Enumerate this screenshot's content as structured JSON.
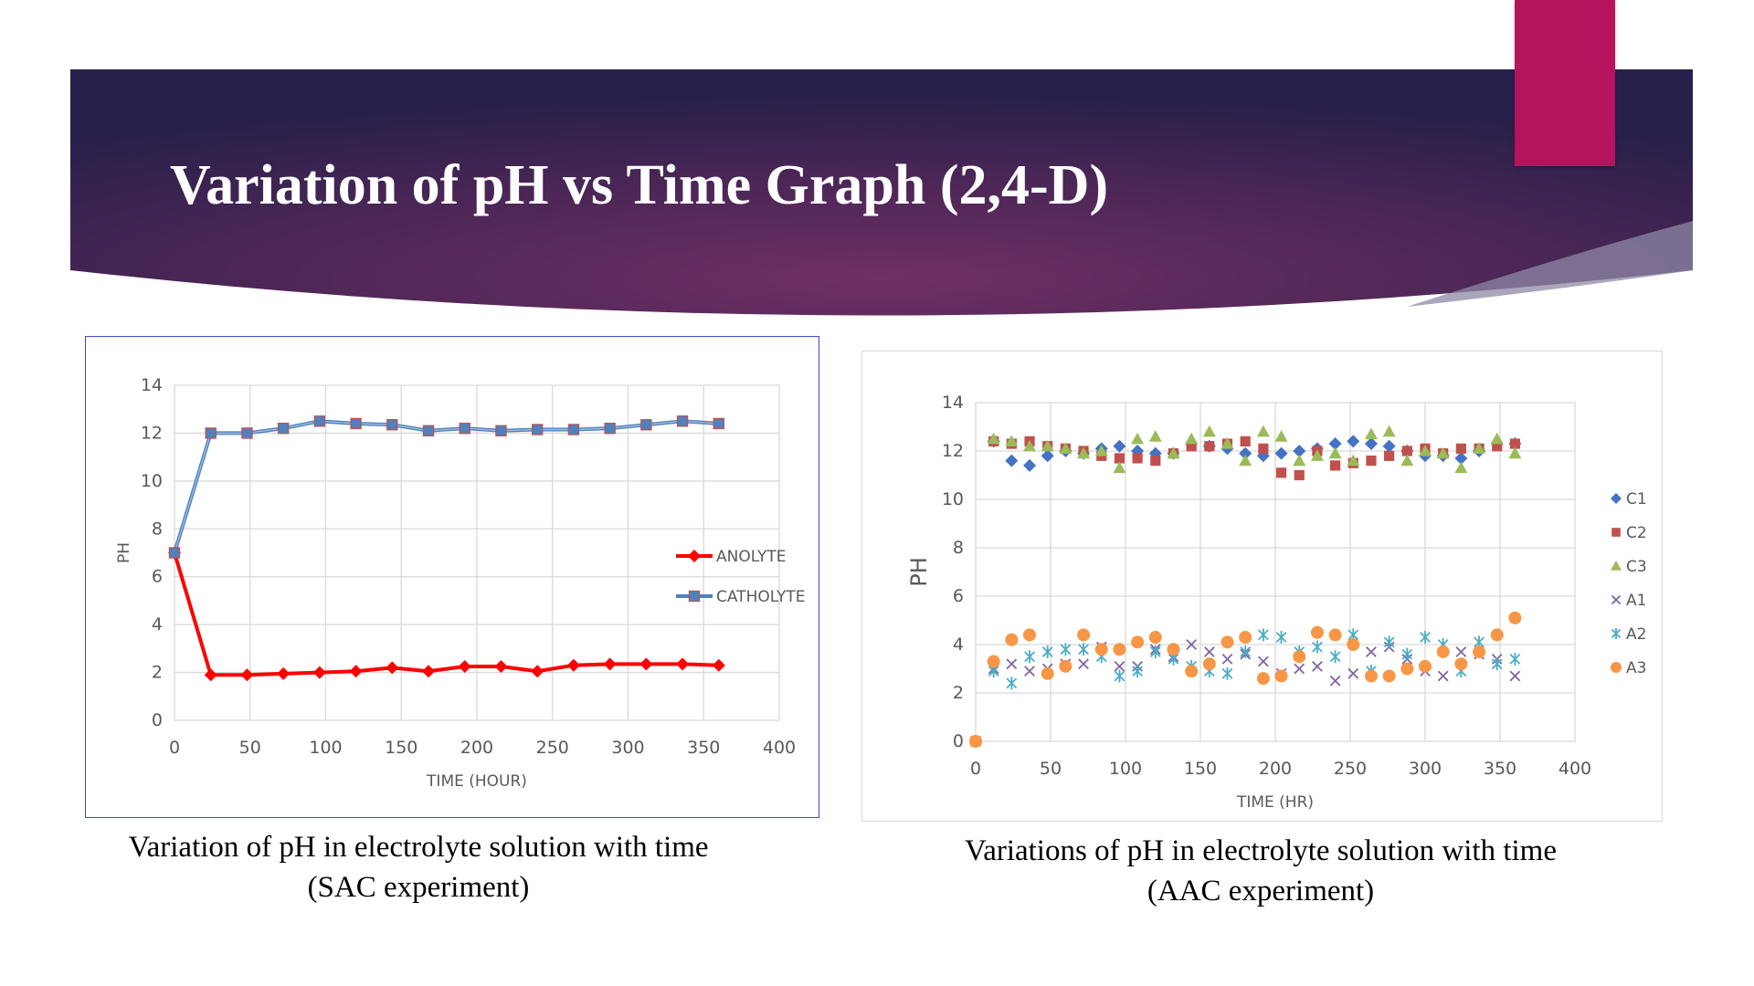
{
  "slide": {
    "title": "Variation of pH vs Time Graph (2,4-D)"
  },
  "colors": {
    "banner_dark": "#2a2147",
    "banner_mid": "#6b2e62",
    "accent": "#b5135e"
  },
  "captions": {
    "left": [
      "Variation of pH in electrolyte solution with time",
      "(SAC experiment)"
    ],
    "right": [
      "Variations of pH in electrolyte solution with time",
      "(AAC experiment)"
    ]
  },
  "chart_data": [
    {
      "type": "line",
      "xlabel": "TIME (HOUR)",
      "ylabel": "PH",
      "xlim": [
        0,
        400
      ],
      "ylim": [
        0,
        14
      ],
      "xticks": [
        "0",
        "50",
        "100",
        "150",
        "200",
        "250",
        "300",
        "350",
        "400"
      ],
      "yticks": [
        "0",
        "2",
        "4",
        "6",
        "8",
        "10",
        "12",
        "14"
      ],
      "grid": true,
      "legend": "right",
      "series": [
        {
          "name": "ANOLYTE",
          "color": "#ff0000",
          "marker": "diamond",
          "x": [
            0,
            24,
            48,
            72,
            96,
            120,
            144,
            168,
            192,
            216,
            240,
            264,
            288,
            312,
            336,
            360
          ],
          "values": [
            7.0,
            1.9,
            1.9,
            1.95,
            2.0,
            2.05,
            2.2,
            2.05,
            2.25,
            2.25,
            2.05,
            2.3,
            2.35,
            2.35,
            2.35,
            2.3
          ]
        },
        {
          "name": "CATHOLYTE",
          "color": "#4f81bd",
          "marker": "square",
          "x": [
            0,
            24,
            48,
            72,
            96,
            120,
            144,
            168,
            192,
            216,
            240,
            264,
            288,
            312,
            336,
            360
          ],
          "values": [
            7.0,
            12.0,
            12.0,
            12.2,
            12.5,
            12.4,
            12.35,
            12.1,
            12.2,
            12.1,
            12.15,
            12.15,
            12.2,
            12.35,
            12.5,
            12.4
          ]
        }
      ]
    },
    {
      "type": "scatter",
      "xlabel": "TIME (HR)",
      "ylabel": "PH",
      "xlim": [
        0,
        400
      ],
      "ylim": [
        0,
        14
      ],
      "xticks": [
        "0",
        "50",
        "100",
        "150",
        "200",
        "250",
        "300",
        "350",
        "400"
      ],
      "yticks": [
        "0",
        "2",
        "4",
        "6",
        "8",
        "10",
        "12",
        "14"
      ],
      "grid": true,
      "legend": "right",
      "series": [
        {
          "name": "C1",
          "color": "#4472c4",
          "marker": "diamond",
          "x": [
            0,
            12,
            24,
            36,
            48,
            60,
            72,
            84,
            96,
            108,
            120,
            132,
            144,
            156,
            168,
            180,
            192,
            204,
            216,
            228,
            240,
            252,
            264,
            276,
            288,
            300,
            312,
            324,
            336,
            348,
            360
          ],
          "values": [
            0,
            12.4,
            11.6,
            11.4,
            11.8,
            12.0,
            11.9,
            12.1,
            12.2,
            12.0,
            11.9,
            11.9,
            12.3,
            12.2,
            12.1,
            11.9,
            11.8,
            11.9,
            12.0,
            12.1,
            12.3,
            12.4,
            12.3,
            12.2,
            12.0,
            11.8,
            11.8,
            11.7,
            12.0,
            12.3,
            12.3
          ]
        },
        {
          "name": "C2",
          "color": "#c0504d",
          "marker": "square",
          "x": [
            0,
            12,
            24,
            36,
            48,
            60,
            72,
            84,
            96,
            108,
            120,
            132,
            144,
            156,
            168,
            180,
            192,
            204,
            216,
            228,
            240,
            252,
            264,
            276,
            288,
            300,
            312,
            324,
            336,
            348,
            360
          ],
          "values": [
            0,
            12.4,
            12.3,
            12.4,
            12.2,
            12.1,
            12.0,
            11.8,
            11.7,
            11.7,
            11.6,
            11.9,
            12.2,
            12.2,
            12.3,
            12.4,
            12.1,
            11.1,
            11.0,
            12.0,
            11.4,
            11.5,
            11.6,
            11.8,
            12.0,
            12.1,
            11.9,
            12.1,
            12.1,
            12.2,
            12.3
          ]
        },
        {
          "name": "C3",
          "color": "#9bbb59",
          "marker": "triangle",
          "x": [
            12,
            24,
            36,
            48,
            60,
            72,
            84,
            96,
            108,
            120,
            132,
            144,
            156,
            168,
            180,
            192,
            204,
            216,
            228,
            240,
            252,
            264,
            276,
            288,
            300,
            312,
            324,
            336,
            348,
            360
          ],
          "values": [
            12.5,
            12.4,
            12.2,
            12.2,
            12.1,
            11.9,
            12.0,
            11.3,
            12.5,
            12.6,
            11.9,
            12.5,
            12.8,
            12.3,
            11.6,
            12.8,
            12.6,
            11.6,
            11.8,
            11.9,
            11.6,
            12.7,
            12.8,
            11.6,
            12.0,
            11.9,
            11.3,
            12.1,
            12.5,
            11.9
          ]
        },
        {
          "name": "A1",
          "color": "#8064a2",
          "marker": "x",
          "x": [
            12,
            24,
            36,
            48,
            60,
            72,
            84,
            96,
            108,
            120,
            132,
            144,
            156,
            168,
            180,
            192,
            204,
            216,
            228,
            240,
            252,
            264,
            276,
            288,
            300,
            312,
            324,
            336,
            348,
            360
          ],
          "values": [
            3.0,
            3.2,
            2.9,
            3.0,
            3.2,
            3.2,
            3.9,
            3.1,
            3.1,
            3.8,
            3.5,
            4.0,
            3.7,
            3.4,
            3.6,
            3.3,
            2.8,
            3.0,
            3.1,
            2.5,
            2.8,
            3.7,
            3.9,
            3.4,
            2.9,
            2.7,
            3.7,
            3.6,
            3.4,
            2.7
          ]
        },
        {
          "name": "A2",
          "color": "#4bacc6",
          "marker": "star",
          "x": [
            12,
            24,
            36,
            48,
            60,
            72,
            84,
            96,
            108,
            120,
            132,
            144,
            156,
            168,
            180,
            192,
            204,
            216,
            228,
            240,
            252,
            264,
            276,
            288,
            300,
            312,
            324,
            336,
            348,
            360
          ],
          "values": [
            2.9,
            2.4,
            3.5,
            3.7,
            3.8,
            3.8,
            3.5,
            2.7,
            2.9,
            3.7,
            3.4,
            3.1,
            2.9,
            2.8,
            3.7,
            4.4,
            4.3,
            3.7,
            3.9,
            3.5,
            4.4,
            2.9,
            4.1,
            3.6,
            4.3,
            4.0,
            2.9,
            4.1,
            3.2,
            3.4
          ]
        },
        {
          "name": "A3",
          "color": "#f79646",
          "marker": "circle",
          "x": [
            0,
            12,
            24,
            36,
            48,
            60,
            72,
            84,
            96,
            108,
            120,
            132,
            144,
            156,
            168,
            180,
            192,
            204,
            216,
            228,
            240,
            252,
            264,
            276,
            288,
            300,
            312,
            324,
            336,
            348,
            360
          ],
          "values": [
            0,
            3.3,
            4.2,
            4.4,
            2.8,
            3.1,
            4.4,
            3.8,
            3.8,
            4.1,
            4.3,
            3.8,
            2.9,
            3.2,
            4.1,
            4.3,
            2.6,
            2.7,
            3.5,
            4.5,
            4.4,
            4.0,
            2.7,
            2.7,
            3.0,
            3.1,
            3.7,
            3.2,
            3.7,
            4.4,
            5.1
          ]
        }
      ]
    }
  ]
}
